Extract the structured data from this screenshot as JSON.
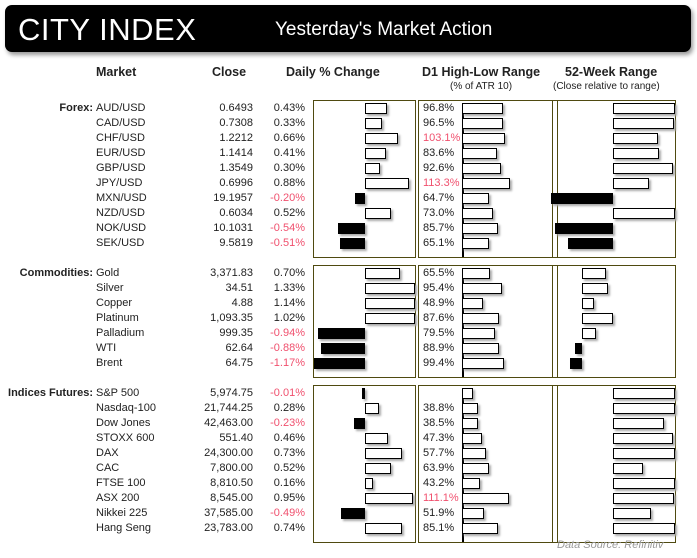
{
  "header": {
    "logo": "CITY INDEX",
    "title": "Yesterday's Market Action"
  },
  "columns": {
    "market": "Market",
    "close": "Close",
    "change": "Daily % Change",
    "d1": "D1 High-Low Range",
    "d1_sub": "(% of ATR 10)",
    "wk52": "52-Week Range",
    "wk52_sub": "(Close relative to range)"
  },
  "colors": {
    "negative": "#f0506e",
    "panel_border": "#4f4a10"
  },
  "sections": [
    {
      "label": "Forex:",
      "rows": [
        {
          "name": "AUD/USD",
          "close": "0.6493",
          "change": "0.43%",
          "chg": 0.43,
          "d1": "96.8%",
          "d1v": 96.8,
          "wk": 1.0
        },
        {
          "name": "CAD/USD",
          "close": "0.7308",
          "change": "0.33%",
          "chg": 0.33,
          "d1": "96.5%",
          "d1v": 96.5,
          "wk": 0.98
        },
        {
          "name": "CHF/USD",
          "close": "1.2212",
          "change": "0.66%",
          "chg": 0.66,
          "d1": "103.1%",
          "d1v": 103.1,
          "wk": 0.72
        },
        {
          "name": "EUR/USD",
          "close": "1.1414",
          "change": "0.41%",
          "chg": 0.41,
          "d1": "83.6%",
          "d1v": 83.6,
          "wk": 0.74
        },
        {
          "name": "GBP/USD",
          "close": "1.3549",
          "change": "0.30%",
          "chg": 0.3,
          "d1": "92.6%",
          "d1v": 92.6,
          "wk": 0.97
        },
        {
          "name": "JPY/USD",
          "close": "0.6996",
          "change": "0.88%",
          "chg": 0.88,
          "d1": "113.3%",
          "d1v": 113.3,
          "wk": 0.58
        },
        {
          "name": "MXN/USD",
          "close": "19.1957",
          "change": "-0.20%",
          "chg": -0.2,
          "d1": "64.7%",
          "d1v": 64.7,
          "wk": -1.0
        },
        {
          "name": "NZD/USD",
          "close": "0.6034",
          "change": "0.52%",
          "chg": 0.52,
          "d1": "73.0%",
          "d1v": 73.0,
          "wk": 1.0
        },
        {
          "name": "NOK/USD",
          "close": "10.1031",
          "change": "-0.54%",
          "chg": -0.54,
          "d1": "85.7%",
          "d1v": 85.7,
          "wk": -0.93
        },
        {
          "name": "SEK/USD",
          "close": "9.5819",
          "change": "-0.51%",
          "chg": -0.51,
          "d1": "65.1%",
          "d1v": 65.1,
          "wk": -0.72
        }
      ]
    },
    {
      "label": "Commodities:",
      "rows": [
        {
          "name": "Gold",
          "close": "3,371.83",
          "change": "0.70%",
          "chg": 0.7,
          "d1": "65.5%",
          "d1v": 65.5,
          "wk": 0.38
        },
        {
          "name": "Silver",
          "close": "34.51",
          "change": "1.33%",
          "chg": 1.33,
          "d1": "95.4%",
          "d1v": 95.4,
          "wk": 0.42
        },
        {
          "name": "Copper",
          "close": "4.88",
          "change": "1.14%",
          "chg": 1.14,
          "d1": "48.9%",
          "d1v": 48.9,
          "wk": 0.2
        },
        {
          "name": "Platinum",
          "close": "1,093.35",
          "change": "1.02%",
          "chg": 1.02,
          "d1": "87.6%",
          "d1v": 87.6,
          "wk": 0.5
        },
        {
          "name": "Palladium",
          "close": "999.35",
          "change": "-0.94%",
          "chg": -0.94,
          "d1": "79.5%",
          "d1v": 79.5,
          "wk": 0.22
        },
        {
          "name": "WTI",
          "close": "62.64",
          "change": "-0.88%",
          "chg": -0.88,
          "d1": "88.9%",
          "d1v": 88.9,
          "wk": -0.12
        },
        {
          "name": "Brent",
          "close": "64.75",
          "change": "-1.17%",
          "chg": -1.17,
          "d1": "99.4%",
          "d1v": 99.4,
          "wk": -0.2
        }
      ]
    },
    {
      "label": "Indices Futures:",
      "rows": [
        {
          "name": "S&P 500",
          "close": "5,974.75",
          "change": "-0.01%",
          "chg": -0.01,
          "d1": "",
          "d1v": 26,
          "wk": 1.0
        },
        {
          "name": "Nasdaq-100",
          "close": "21,744.25",
          "change": "0.28%",
          "chg": 0.28,
          "d1": "38.8%",
          "d1v": 38.8,
          "wk": 1.0
        },
        {
          "name": "Dow Jones",
          "close": "42,463.00",
          "change": "-0.23%",
          "chg": -0.23,
          "d1": "38.5%",
          "d1v": 38.5,
          "wk": 0.83
        },
        {
          "name": "STOXX 600",
          "close": "551.40",
          "change": "0.46%",
          "chg": 0.46,
          "d1": "47.3%",
          "d1v": 47.3,
          "wk": 0.96
        },
        {
          "name": "DAX",
          "close": "24,300.00",
          "change": "0.73%",
          "chg": 0.73,
          "d1": "57.7%",
          "d1v": 57.7,
          "wk": 1.0
        },
        {
          "name": "CAC",
          "close": "7,800.00",
          "change": "0.52%",
          "chg": 0.52,
          "d1": "63.9%",
          "d1v": 63.9,
          "wk": 0.49
        },
        {
          "name": "FTSE 100",
          "close": "8,810.50",
          "change": "0.16%",
          "chg": 0.16,
          "d1": "43.2%",
          "d1v": 43.2,
          "wk": 1.0
        },
        {
          "name": "ASX 200",
          "close": "8,545.00",
          "change": "0.95%",
          "chg": 0.95,
          "d1": "111.1%",
          "d1v": 111.1,
          "wk": 0.98
        },
        {
          "name": "Nikkei 225",
          "close": "37,585.00",
          "change": "-0.49%",
          "chg": -0.49,
          "d1": "51.9%",
          "d1v": 51.9,
          "wk": 0.62
        },
        {
          "name": "Hang Seng",
          "close": "23,783.00",
          "change": "0.74%",
          "chg": 0.74,
          "d1": "85.1%",
          "d1v": 85.1,
          "wk": 1.0
        }
      ]
    }
  ],
  "footer": {
    "source": "Data Source: Refinitiv"
  }
}
